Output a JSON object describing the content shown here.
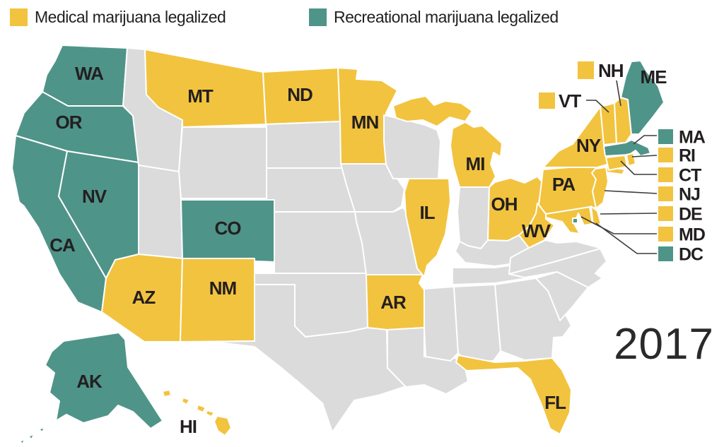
{
  "legend": {
    "items": [
      {
        "id": "medical",
        "label": "Medical marijuana legalized"
      },
      {
        "id": "recreational",
        "label": "Recreational marijuana legalized"
      }
    ]
  },
  "year_label": "2017",
  "colors": {
    "medical": "#F2C33E",
    "recreational": "#4F9489",
    "none": "#DBDBDB",
    "border": "#FFFFFF",
    "label_text": "#231F20",
    "leader_line": "#3C3C3C"
  },
  "map": {
    "state_status": {
      "WA": "recreational",
      "OR": "recreational",
      "CA": "recreational",
      "NV": "recreational",
      "AK": "recreational",
      "CO": "recreational",
      "ME": "recreational",
      "MA": "recreational",
      "DC": "recreational",
      "MT": "medical",
      "ND": "medical",
      "MN": "medical",
      "MI": "medical",
      "IL": "medical",
      "OH": "medical",
      "WV": "medical",
      "PA": "medical",
      "NY": "medical",
      "VT": "medical",
      "NH": "medical",
      "AZ": "medical",
      "NM": "medical",
      "AR": "medical",
      "FL": "medical",
      "HI": "medical",
      "RI": "medical",
      "CT": "medical",
      "NJ": "medical",
      "DE": "medical",
      "MD": "medical",
      "ID": "none",
      "WY": "none",
      "UT": "none",
      "SD": "none",
      "NE": "none",
      "KS": "none",
      "OK": "none",
      "TX": "none",
      "IA": "none",
      "MO": "none",
      "LA": "none",
      "WI": "none",
      "IN": "none",
      "KY": "none",
      "TN": "none",
      "MS": "none",
      "AL": "none",
      "GA": "none",
      "SC": "none",
      "NC": "none",
      "VA": "none"
    },
    "on_map_labels": [
      "WA",
      "OR",
      "CA",
      "NV",
      "MT",
      "ND",
      "MN",
      "MI",
      "IL",
      "OH",
      "WV",
      "PA",
      "NY",
      "ME",
      "CO",
      "AZ",
      "NM",
      "AR",
      "FL",
      "AK",
      "HI"
    ],
    "keyed_labels": [
      "NH",
      "VT"
    ],
    "callouts": [
      "MA",
      "RI",
      "CT",
      "NJ",
      "DE",
      "MD",
      "DC"
    ]
  }
}
